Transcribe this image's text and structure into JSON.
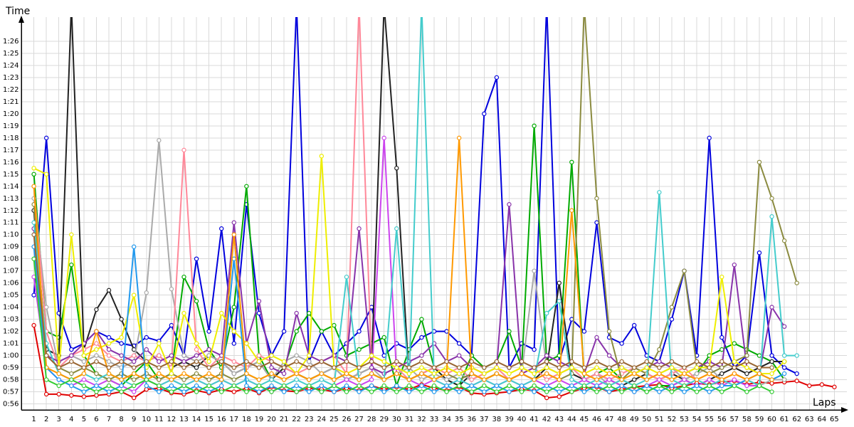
{
  "chart_data": {
    "type": "line",
    "title": "",
    "xlabel": "Laps",
    "ylabel": "Time",
    "x_ticks": [
      1,
      2,
      3,
      4,
      5,
      6,
      7,
      8,
      9,
      10,
      11,
      12,
      13,
      14,
      15,
      16,
      17,
      18,
      19,
      20,
      21,
      22,
      23,
      24,
      25,
      26,
      27,
      28,
      29,
      30,
      31,
      32,
      33,
      34,
      35,
      36,
      37,
      38,
      39,
      40,
      41,
      42,
      43,
      44,
      45,
      46,
      47,
      48,
      49,
      50,
      51,
      52,
      53,
      54,
      55,
      56,
      57,
      58,
      59,
      60,
      61,
      62,
      63,
      64,
      65
    ],
    "xlim": [
      0,
      66
    ],
    "ylim": [
      55.5,
      88
    ],
    "y_ticks": [
      {
        "v": 56,
        "label": "0:56"
      },
      {
        "v": 57,
        "label": "0:57"
      },
      {
        "v": 58,
        "label": "0:58"
      },
      {
        "v": 59,
        "label": "0:59"
      },
      {
        "v": 60,
        "label": "1:00"
      },
      {
        "v": 61,
        "label": "1:01"
      },
      {
        "v": 62,
        "label": "1:02"
      },
      {
        "v": 63,
        "label": "1:03"
      },
      {
        "v": 64,
        "label": "1:04"
      },
      {
        "v": 65,
        "label": "1:05"
      },
      {
        "v": 66,
        "label": "1:06"
      },
      {
        "v": 67,
        "label": "1:07"
      },
      {
        "v": 68,
        "label": "1:08"
      },
      {
        "v": 69,
        "label": "1:09"
      },
      {
        "v": 70,
        "label": "1:10"
      },
      {
        "v": 71,
        "label": "1:11"
      },
      {
        "v": 72,
        "label": "1:12"
      },
      {
        "v": 73,
        "label": "1:13"
      },
      {
        "v": 74,
        "label": "1:14"
      },
      {
        "v": 75,
        "label": "1:15"
      },
      {
        "v": 76,
        "label": "1:16"
      },
      {
        "v": 77,
        "label": "1:17"
      },
      {
        "v": 78,
        "label": "1:18"
      },
      {
        "v": 79,
        "label": "1:19"
      },
      {
        "v": 80,
        "label": "1:20"
      },
      {
        "v": 81,
        "label": "1:21"
      },
      {
        "v": 82,
        "label": "1:22"
      },
      {
        "v": 83,
        "label": "1:23"
      },
      {
        "v": 84,
        "label": "1:24"
      },
      {
        "v": 85,
        "label": "1:25"
      },
      {
        "v": 86,
        "label": "1:26"
      }
    ],
    "grid": true,
    "legend": "none",
    "series": [
      {
        "color": "#e00000",
        "values": [
          62.5,
          56.8,
          56.8,
          56.7,
          56.6,
          56.7,
          56.8,
          57.0,
          56.5,
          57.2,
          57.3,
          56.9,
          56.8,
          57.1,
          56.9,
          57.2,
          57.0,
          57.3,
          56.9,
          57.4,
          57.1,
          57.0,
          57.3,
          57.2,
          57.0,
          57.3,
          57.1,
          57.5,
          57.2,
          57.4,
          57.2,
          57.6,
          57.3,
          57.1,
          57.4,
          56.9,
          56.8,
          56.9,
          57.0,
          57.2,
          57.1,
          56.5,
          56.6,
          57.0,
          57.3,
          57.4,
          57.0,
          57.2,
          57.4,
          57.5,
          57.6,
          57.3,
          57.5,
          57.7,
          57.6,
          57.8,
          57.9,
          57.6,
          57.8,
          57.7,
          57.8,
          57.9,
          57.5,
          57.6,
          57.4
        ]
      },
      {
        "color": "#0000dd",
        "values": [
          65,
          78,
          63.5,
          60.5,
          61,
          62,
          61.5,
          61,
          60.8,
          61.5,
          61.2,
          62.5,
          60,
          68,
          62,
          70.5,
          61,
          72.5,
          63.5,
          60,
          62,
          89,
          59.5,
          62,
          60,
          61,
          62,
          64,
          60,
          61,
          60.5,
          61.5,
          62,
          62,
          61,
          60,
          80,
          83,
          59,
          61,
          60.5,
          89,
          59.5,
          63,
          62,
          71,
          61.5,
          61,
          62.5,
          60,
          59.5,
          63,
          67,
          60,
          78,
          61.5,
          59,
          60,
          68.5,
          60,
          59,
          58.5
        ]
      },
      {
        "color": "#00aa00",
        "values": [
          75,
          62,
          61.5,
          67.5,
          60,
          58.5,
          58,
          57.5,
          58.5,
          59.5,
          58,
          58.5,
          66.5,
          64.5,
          60.5,
          59,
          64,
          74,
          60,
          58,
          59,
          62,
          63.5,
          62,
          62.5,
          60,
          60.5,
          61,
          61.5,
          57.5,
          60.5,
          63,
          59,
          58,
          57.5,
          60,
          59,
          59.5,
          62,
          59,
          79,
          59.5,
          60,
          76,
          58,
          58.5,
          59,
          58,
          57.5,
          57,
          57.5,
          57.5,
          58,
          58.5,
          60,
          60.5,
          61,
          60.5,
          60,
          59.5,
          58
        ]
      },
      {
        "color": "#222222",
        "values": [
          72,
          60.5,
          60,
          89,
          60.5,
          63.8,
          65.4,
          63,
          60.5,
          59.5,
          60,
          59,
          59.5,
          59,
          60,
          59.5,
          58.5,
          59,
          59.5,
          58,
          59,
          58.5,
          58,
          58.5,
          59,
          58,
          58.5,
          59,
          89,
          75.5,
          58,
          58.5,
          59,
          58,
          57.5,
          58.5,
          58,
          58.5,
          58,
          58.5,
          58,
          59,
          66,
          58.5,
          58,
          58.5,
          58,
          57.5,
          58,
          58.5,
          58,
          58.5,
          58,
          57.5,
          58,
          58.5,
          59,
          58.5,
          59,
          59.5,
          59.5
        ]
      },
      {
        "color": "#aaaaaa",
        "values": [
          73,
          64,
          59,
          60,
          59.5,
          60,
          59.5,
          59,
          59.5,
          65.2,
          77.8,
          65.5,
          60,
          59.5,
          60,
          59.5,
          58.5,
          59,
          59.5,
          58,
          59.5,
          60,
          59.5,
          58.5,
          59,
          58,
          58.5,
          59,
          58,
          58.5,
          59,
          58,
          58.5,
          58,
          58.5,
          58,
          58.5,
          59,
          58,
          58.5,
          67,
          59,
          58.5,
          59,
          58,
          58.5,
          57.5,
          58,
          58.5,
          58,
          58.5,
          59,
          58,
          58.5,
          59,
          58,
          58.5,
          58,
          57.5,
          58,
          58
        ]
      },
      {
        "color": "#ff8899",
        "values": [
          74,
          62,
          59,
          60,
          60.5,
          61,
          60,
          59.5,
          60,
          59.5,
          60,
          59,
          77,
          60.5,
          59,
          60,
          59.5,
          59,
          60,
          59.5,
          59,
          58.5,
          59,
          59.5,
          60,
          58.5,
          89,
          59,
          58.5,
          59,
          58,
          58.5,
          59,
          58.5,
          59,
          58,
          58.5,
          59,
          58,
          58.5,
          59,
          58,
          58.5,
          59,
          58,
          58.5,
          58,
          58.5,
          59,
          58.5,
          58,
          58.5,
          59,
          58,
          58.5,
          58,
          58.5,
          58
        ]
      },
      {
        "color": "#cc44ee",
        "values": [
          66.5,
          59,
          58,
          57.5,
          58,
          57.5,
          58,
          57.5,
          57,
          58,
          57.5,
          58,
          57.5,
          58,
          57.5,
          58,
          57.5,
          58,
          57.5,
          57,
          57.5,
          57,
          57.5,
          57,
          57.5,
          58,
          57.5,
          58,
          78,
          58.5,
          58,
          57.5,
          58,
          57.5,
          58,
          57.5,
          58,
          57.5,
          58,
          57.5,
          58,
          57.5,
          58,
          57.5,
          58,
          57.5,
          58,
          57.5,
          57,
          57.5,
          58,
          57.5,
          58,
          57.5,
          58,
          57.5,
          58,
          57.5,
          57.5
        ]
      },
      {
        "color": "#8833aa",
        "values": [
          70.5,
          60,
          59.5,
          60,
          61,
          62,
          60.5,
          60,
          59.5,
          60.5,
          59.5,
          60,
          59.5,
          60,
          60.5,
          60,
          71,
          61,
          64.5,
          59,
          58.5,
          63.5,
          60,
          59.5,
          60,
          59.5,
          70.5,
          59,
          58.5,
          59,
          59.5,
          60,
          61,
          59.5,
          60,
          59,
          58.5,
          59,
          72.5,
          58.5,
          59,
          60,
          59.5,
          59,
          58.5,
          61.5,
          60,
          59,
          58.5,
          59,
          59.5,
          59,
          58.5,
          59,
          59.5,
          59,
          67.5,
          59,
          58.5,
          64,
          62.4
        ]
      },
      {
        "color": "#8b8b40",
        "values": [
          72.5,
          60,
          59,
          58.5,
          59,
          58.5,
          58,
          58.5,
          58,
          58.5,
          58,
          58.5,
          58,
          58.5,
          58,
          58.5,
          58,
          58.5,
          58,
          58.5,
          58,
          58.5,
          58,
          58.5,
          58,
          58.5,
          58,
          58.5,
          58,
          58.5,
          58,
          58.5,
          58,
          58.5,
          58,
          58.5,
          58,
          58.5,
          58,
          58.5,
          58,
          58.5,
          58,
          58.5,
          89,
          73,
          62,
          58,
          59,
          58.5,
          60.5,
          64,
          67,
          59,
          58.5,
          59,
          59.5,
          60,
          76,
          73,
          69.5,
          66
        ]
      },
      {
        "color": "#44cccc",
        "values": [
          71,
          61,
          58.5,
          58,
          58.5,
          58,
          58.5,
          58,
          57.5,
          58,
          57.5,
          58,
          57.5,
          58,
          57.5,
          58,
          57.5,
          58,
          57.5,
          58,
          57.5,
          58,
          57.5,
          58,
          57.5,
          66.5,
          58,
          58.5,
          58,
          70.5,
          58,
          89,
          58,
          57.5,
          58,
          57.5,
          58,
          57.5,
          58,
          57.5,
          58,
          63.5,
          64.5,
          58,
          57.5,
          58,
          57.5,
          58,
          57.5,
          58,
          73.5,
          58,
          57.5,
          58,
          57.5,
          58,
          57.5,
          58,
          57.5,
          71.5,
          60,
          60
        ]
      },
      {
        "color": "#eeee00",
        "values": [
          75.5,
          75,
          59,
          70,
          60,
          60.5,
          61,
          61.5,
          65,
          59,
          61,
          58.5,
          63.5,
          61,
          59.5,
          63.5,
          62,
          61,
          59.5,
          60,
          59.5,
          58.5,
          60,
          76.5,
          59,
          58.5,
          59,
          60,
          59.5,
          59,
          58.5,
          59,
          58.5,
          59,
          58.5,
          59,
          58.5,
          59,
          58.5,
          59,
          58.5,
          59,
          58.5,
          59,
          58.5,
          59,
          58.5,
          59,
          58.5,
          59,
          58.5,
          59,
          58.5,
          59,
          59,
          66.5,
          59.5,
          59,
          58.5,
          58.5,
          59.5
        ]
      },
      {
        "color": "#2299ee",
        "values": [
          69,
          59,
          58,
          57.5,
          57,
          57.5,
          57,
          57.5,
          69,
          57.5,
          57,
          57.5,
          57,
          57.5,
          57,
          57.5,
          68,
          57.5,
          57,
          57.5,
          57,
          57.5,
          57,
          57.5,
          57,
          57.5,
          57,
          57.5,
          57,
          57.5,
          57,
          57.5,
          57,
          57.5,
          57,
          57.5,
          57,
          57.5,
          57,
          57.5,
          57,
          57.5,
          57,
          57.5,
          57,
          57.5,
          57,
          57.5,
          57,
          57.5,
          57,
          57.5,
          57,
          57.5,
          57,
          57.5,
          57.5,
          58,
          58.5,
          58,
          58.5
        ]
      },
      {
        "color": "#ff9900",
        "values": [
          74,
          59,
          58.5,
          58,
          58.5,
          62,
          58.5,
          58,
          58.5,
          58,
          58.5,
          58,
          58.5,
          58,
          58.5,
          58,
          70,
          58.5,
          58,
          58.5,
          58,
          58.5,
          58,
          58.5,
          58,
          58.5,
          58,
          58.5,
          58,
          58.5,
          58,
          58.5,
          58,
          58.5,
          78,
          58.5,
          58,
          58.5,
          58,
          58.5,
          58,
          58.5,
          58,
          72,
          58.5,
          58,
          58.5,
          58,
          58.5,
          58,
          58.5,
          58,
          58.5,
          58,
          58.5,
          58,
          58.5,
          58,
          58.5,
          58
        ]
      },
      {
        "color": "#33cc33",
        "values": [
          68,
          58,
          57.5,
          58,
          57.5,
          57,
          57.5,
          57,
          57.5,
          58,
          57.5,
          57,
          57.5,
          57,
          57.5,
          57,
          57.5,
          57,
          57.5,
          57,
          57.5,
          57,
          57.5,
          57,
          57.5,
          57,
          57.5,
          57,
          57.5,
          57,
          57.5,
          57,
          57.5,
          57,
          57.5,
          57,
          57.5,
          57,
          57.5,
          57,
          57.5,
          57,
          57.5,
          57,
          57.5,
          57,
          57.5,
          57,
          57.5,
          57,
          57.5,
          57,
          57.5,
          57,
          57.5,
          57,
          57.5,
          57,
          57.5,
          57
        ]
      },
      {
        "color": "#996633",
        "values": [
          70,
          60,
          59,
          59.5,
          59,
          59.5,
          59,
          59.5,
          59,
          59.5,
          59,
          59.5,
          59,
          59.5,
          59,
          59.5,
          59,
          59.5,
          59,
          59.5,
          59,
          59.5,
          59,
          59.5,
          59,
          59.5,
          59,
          59.5,
          59,
          59.5,
          59,
          59.5,
          59,
          59.5,
          59,
          59.5,
          59,
          59.5,
          59,
          59.5,
          59,
          59.5,
          59,
          59.5,
          59,
          59.5,
          59,
          59.5,
          59,
          59.5,
          59,
          59.5,
          59,
          59.5,
          59,
          59.5,
          59,
          59.5,
          59,
          59
        ]
      }
    ]
  }
}
